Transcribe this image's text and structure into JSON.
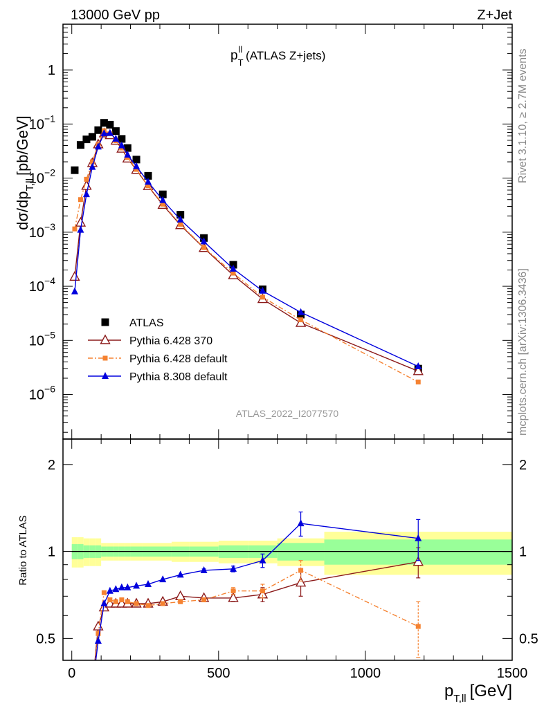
{
  "header": {
    "left": "13000 GeV pp",
    "right": "Z+Jet"
  },
  "side_text": {
    "rivet": "Rivet 3.1.10, ≥ 2.7M events",
    "mcplots": "mcplots.cern.ch [arXiv:1306.3436]"
  },
  "plot_title": {
    "main": "p",
    "sub": "T",
    "sup": "ll",
    "rest": " (ATLAS Z+jets)"
  },
  "analysis_label": "ATLAS_2022_I2077570",
  "colors": {
    "data": "#000000",
    "p6_370": "#8b1a1a",
    "p6_default": "#f58231",
    "p8_default": "#0000dd",
    "band_yellow": "#ffff99",
    "band_green": "#99ff99"
  },
  "chart_data": [
    {
      "type": "scatter",
      "panel": "main",
      "ylabel": "dσ/dp",
      "ylabel_sub": "T,ll",
      "ylabel_unit": "[pb/GeV]",
      "yscale": "log",
      "xlim": [
        -30,
        1500
      ],
      "ylim": [
        1.5e-07,
        7
      ],
      "yticks": [
        {
          "v": 1e-06,
          "base": "10",
          "exp": "−6"
        },
        {
          "v": 1e-05,
          "base": "10",
          "exp": "−5"
        },
        {
          "v": 0.0001,
          "base": "10",
          "exp": "−4"
        },
        {
          "v": 0.001,
          "base": "10",
          "exp": "−3"
        },
        {
          "v": 0.01,
          "base": "10",
          "exp": "−2"
        },
        {
          "v": 0.1,
          "base": "10",
          "exp": "−1"
        },
        {
          "v": 1,
          "base": "1",
          "exp": ""
        }
      ],
      "legend": {
        "placement": "bottom-left",
        "entries": [
          "ATLAS",
          "Pythia 6.428 370",
          "Pythia 6.428 default",
          "Pythia 8.308 default"
        ]
      },
      "series": [
        {
          "name": "ATLAS",
          "marker": "square",
          "x": [
            10,
            30,
            50,
            70,
            90,
            110,
            130,
            150,
            170,
            190,
            220,
            260,
            310,
            370,
            450,
            550,
            650,
            780,
            1180
          ],
          "y": [
            0.014,
            0.041,
            0.052,
            0.058,
            0.077,
            0.105,
            0.097,
            0.074,
            0.053,
            0.036,
            0.022,
            0.011,
            0.005,
            0.0021,
            0.00078,
            0.00025,
            8.8e-05,
            3e-05,
            3e-06
          ]
        },
        {
          "name": "Pythia 6.428 370",
          "marker": "open-triangle",
          "x": [
            10,
            30,
            50,
            70,
            90,
            110,
            130,
            150,
            170,
            190,
            220,
            260,
            310,
            370,
            450,
            550,
            650,
            780,
            1180
          ],
          "y": [
            0.00015,
            0.0015,
            0.0072,
            0.019,
            0.042,
            0.067,
            0.062,
            0.049,
            0.035,
            0.023,
            0.0142,
            0.0071,
            0.0032,
            0.00135,
            0.00051,
            0.00016,
            5.8e-05,
            2.1e-05,
            2.7e-06
          ]
        },
        {
          "name": "Pythia 6.428 default",
          "marker": "small-square",
          "x": [
            10,
            30,
            50,
            70,
            90,
            110,
            130,
            150,
            170,
            190,
            220,
            260,
            310,
            370,
            450,
            550,
            650,
            780,
            1180
          ],
          "y": [
            0.00115,
            0.004,
            0.0095,
            0.02,
            0.042,
            0.075,
            0.066,
            0.049,
            0.036,
            0.024,
            0.0145,
            0.0072,
            0.0033,
            0.0014,
            0.00052,
            0.000175,
            6.3e-05,
            2.4e-05,
            1.7e-06
          ]
        },
        {
          "name": "Pythia 8.308 default",
          "marker": "filled-triangle",
          "x": [
            10,
            30,
            50,
            70,
            90,
            110,
            130,
            150,
            170,
            190,
            220,
            260,
            310,
            370,
            450,
            550,
            650,
            780,
            1180
          ],
          "y": [
            8e-05,
            0.0011,
            0.005,
            0.016,
            0.038,
            0.067,
            0.068,
            0.053,
            0.04,
            0.027,
            0.0165,
            0.0085,
            0.0039,
            0.0017,
            0.00067,
            0.00021,
            8.2e-05,
            3.3e-05,
            3.3e-06
          ]
        }
      ]
    },
    {
      "type": "line",
      "panel": "ratio",
      "ylabel": "Ratio to ATLAS",
      "xlabel": "p",
      "xlabel_sub": "T,ll",
      "xlabel_unit": "[GeV]",
      "yscale": "log",
      "xlim": [
        -30,
        1500
      ],
      "ylim": [
        0.42,
        2.45
      ],
      "yticks": [
        0.5,
        1,
        2
      ],
      "ytick_labels": [
        "0.5",
        "1",
        "2"
      ],
      "xticks": [
        0,
        500,
        1000,
        1500
      ],
      "xtick_labels": [
        "0",
        "500",
        "1000",
        "1500"
      ],
      "bands": {
        "edges": [
          0,
          20,
          40,
          60,
          80,
          100,
          120,
          140,
          160,
          180,
          200,
          240,
          280,
          340,
          400,
          500,
          600,
          700,
          860,
          1500
        ],
        "yellow_rel": [
          0.12,
          0.12,
          0.11,
          0.11,
          0.11,
          0.07,
          0.07,
          0.07,
          0.07,
          0.07,
          0.07,
          0.07,
          0.07,
          0.08,
          0.08,
          0.09,
          0.09,
          0.11,
          0.17
        ],
        "green_rel": [
          0.06,
          0.06,
          0.05,
          0.05,
          0.05,
          0.04,
          0.04,
          0.04,
          0.04,
          0.04,
          0.04,
          0.04,
          0.04,
          0.04,
          0.04,
          0.05,
          0.05,
          0.07,
          0.1
        ]
      },
      "series": [
        {
          "name": "Pythia 6.428 370",
          "x": [
            70,
            90,
            110,
            130,
            150,
            170,
            190,
            220,
            260,
            310,
            370,
            450,
            550,
            650,
            780,
            1180
          ],
          "y": [
            0.33,
            0.55,
            0.64,
            0.66,
            0.66,
            0.66,
            0.66,
            0.66,
            0.66,
            0.67,
            0.7,
            0.69,
            0.69,
            0.71,
            0.78,
            0.92
          ],
          "err": [
            0,
            0,
            0,
            0,
            0,
            0,
            0,
            0,
            0,
            0,
            0,
            0,
            0.02,
            0.04,
            0.08,
            0.11
          ]
        },
        {
          "name": "Pythia 6.428 default",
          "x": [
            70,
            90,
            110,
            130,
            150,
            170,
            190,
            220,
            260,
            310,
            370,
            450,
            550,
            650,
            780,
            1180
          ],
          "y": [
            0.34,
            0.52,
            0.72,
            0.68,
            0.67,
            0.68,
            0.67,
            0.66,
            0.65,
            0.66,
            0.67,
            0.68,
            0.73,
            0.73,
            0.86,
            0.55
          ],
          "err": [
            0,
            0,
            0,
            0,
            0,
            0,
            0,
            0,
            0,
            0,
            0,
            0,
            0.02,
            0.04,
            0.07,
            0.12
          ]
        },
        {
          "name": "Pythia 8.308 default",
          "x": [
            70,
            90,
            110,
            130,
            150,
            170,
            190,
            220,
            260,
            310,
            370,
            450,
            550,
            650,
            780,
            1180
          ],
          "y": [
            0.28,
            0.49,
            0.66,
            0.73,
            0.74,
            0.75,
            0.75,
            0.76,
            0.77,
            0.8,
            0.83,
            0.86,
            0.87,
            0.93,
            1.25,
            1.11
          ],
          "err": [
            0,
            0,
            0,
            0,
            0,
            0,
            0,
            0,
            0,
            0,
            0,
            0.01,
            0.02,
            0.05,
            0.12,
            0.18
          ]
        }
      ]
    }
  ]
}
